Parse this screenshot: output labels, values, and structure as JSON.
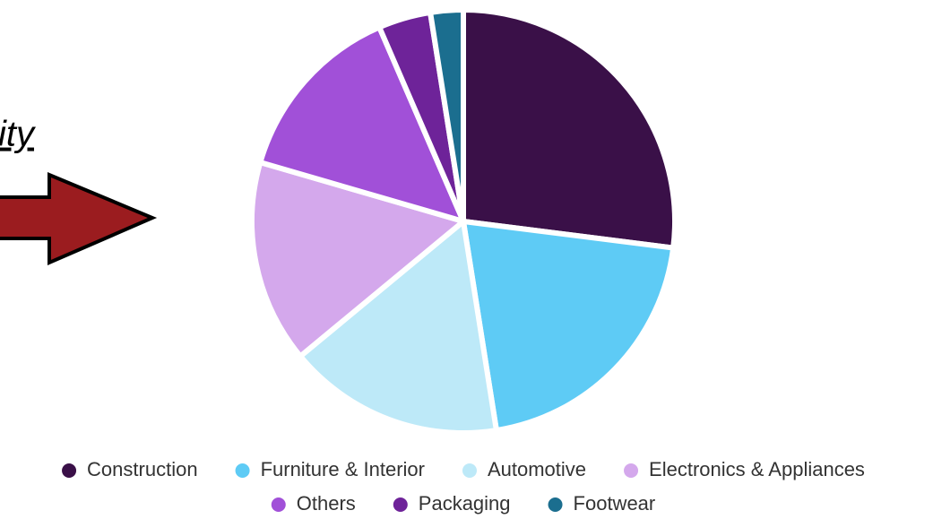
{
  "slide_text": "ity",
  "chart_data": {
    "type": "pie",
    "categories": [
      "Construction",
      "Furniture & Interior",
      "Automotive",
      "Electronics & Appliances",
      "Others",
      "Packaging",
      "Footwear"
    ],
    "values": [
      27,
      20.5,
      16.5,
      15.5,
      14,
      4,
      2.5
    ],
    "colors": [
      "#3a1048",
      "#5ecbf5",
      "#bde9f8",
      "#d4a8ec",
      "#a150d8",
      "#6e2399",
      "#1b6e8f"
    ],
    "legend": "bottom"
  }
}
